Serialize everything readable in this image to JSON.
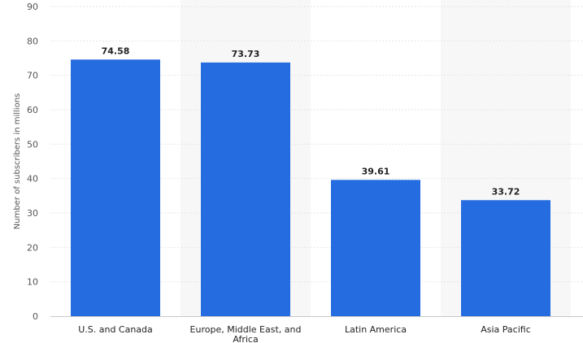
{
  "chart_data": {
    "type": "bar",
    "categories": [
      "U.S. and Canada",
      "Europe, Middle East, and Africa",
      "Latin America",
      "Asia Pacific"
    ],
    "values": [
      74.58,
      73.73,
      39.61,
      33.72
    ],
    "value_labels": [
      "74.58",
      "73.73",
      "39.61",
      "33.72"
    ],
    "title": "",
    "xlabel": "",
    "ylabel": "Number of subscribers in millions",
    "ylim": [
      0,
      90
    ],
    "yticks": [
      0,
      10,
      20,
      30,
      40,
      50,
      60,
      70,
      80,
      90
    ],
    "grid": true,
    "bar_color": "#256ce0",
    "alternate_band_color": "#f7f7f7"
  }
}
